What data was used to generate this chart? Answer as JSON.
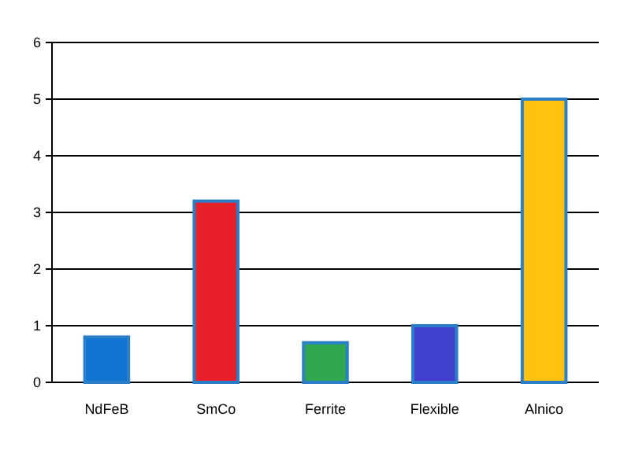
{
  "chart_data": {
    "type": "bar",
    "categories": [
      "NdFeB",
      "SmCo",
      "Ferrite",
      "Flexible",
      "Alnico"
    ],
    "values": [
      0.8,
      3.2,
      0.7,
      1.0,
      5.0
    ],
    "colors": [
      "#1174d2",
      "#e8202a",
      "#2fa84f",
      "#4040cc",
      "#ffc30f"
    ],
    "ylim": [
      0,
      6
    ],
    "yticks": [
      0,
      1,
      2,
      3,
      4,
      5,
      6
    ],
    "grid": "y"
  }
}
